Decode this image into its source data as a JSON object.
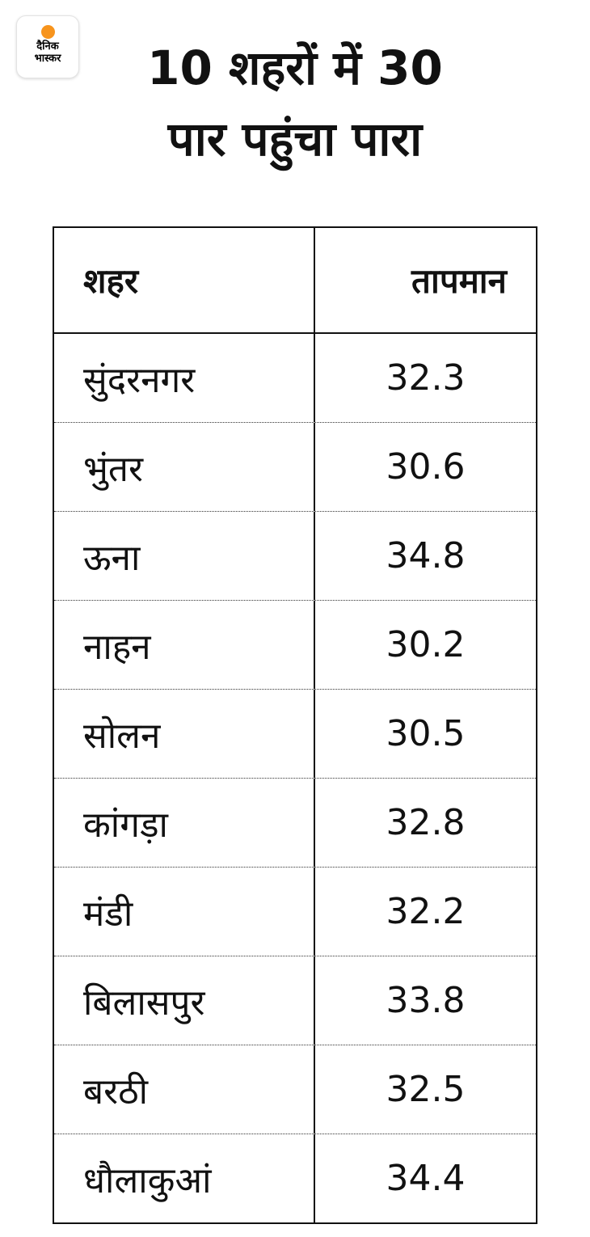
{
  "logo": {
    "line1": "दैनिक",
    "line2": "भास्कर",
    "accent": "#f7941d"
  },
  "title": {
    "line1": "10 शहरों में 30",
    "line2": "पार पहुंचा पारा"
  },
  "chart_data": {
    "type": "table",
    "columns": [
      "शहर",
      "तापमान"
    ],
    "rows": [
      [
        "सुंदरनगर",
        "32.3"
      ],
      [
        "भुंतर",
        "30.6"
      ],
      [
        "ऊना",
        "34.8"
      ],
      [
        "नाहन",
        "30.2"
      ],
      [
        "सोलन",
        "30.5"
      ],
      [
        "कांगड़ा",
        "32.8"
      ],
      [
        "मंडी",
        "32.2"
      ],
      [
        "बिलासपुर",
        "33.8"
      ],
      [
        "बरठी",
        "32.5"
      ],
      [
        "धौलाकुआं",
        "34.4"
      ]
    ]
  }
}
